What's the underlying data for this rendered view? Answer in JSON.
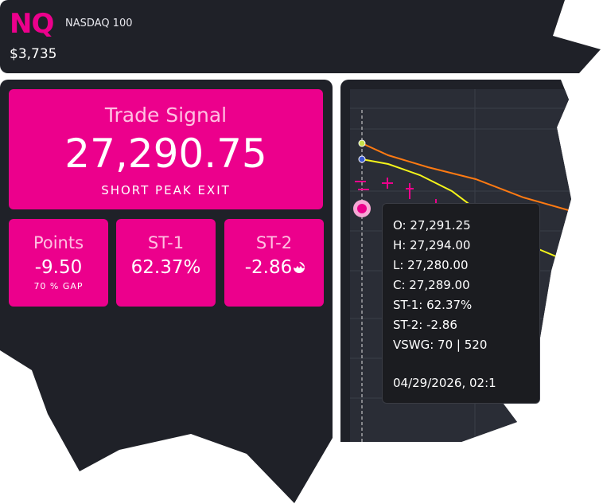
{
  "header": {
    "symbol": "NQ",
    "name": "NASDAQ 100",
    "price": "$3,735"
  },
  "signal": {
    "title": "Trade Signal",
    "value": "27,290.75",
    "label": "SHORT PEAK EXIT"
  },
  "stats": [
    {
      "title": "Points",
      "value": "-9.50",
      "note": "70 % GAP"
    },
    {
      "title": "ST-1",
      "value": "62.37%"
    },
    {
      "title": "ST-2",
      "value": "-2.86"
    }
  ],
  "tooltip": {
    "lines": [
      "O: 27,291.25",
      "H: 27,294.00",
      "L: 27,280.00",
      "C: 27,289.00",
      "ST-1: 62.37%",
      "ST-2: -2.86",
      "VSWG: 70 | 520",
      "04/29/2026, 02:1"
    ]
  }
}
